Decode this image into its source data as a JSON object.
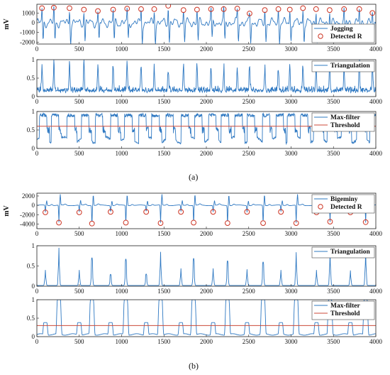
{
  "captions": {
    "a": "(a)",
    "b": "(b)"
  },
  "colors": {
    "signal": "#2e78c2",
    "detected": "#cc3322",
    "threshold": "#cc4a3a",
    "axis": "#222222"
  },
  "chart_data": [
    {
      "id": "a1",
      "type": "line",
      "ylabel": "mV",
      "xlim": [
        0,
        4000
      ],
      "ylim": [
        -2200,
        1900
      ],
      "xticks": [
        0,
        500,
        1000,
        1500,
        2000,
        2500,
        3000,
        3500,
        4000
      ],
      "yticks": [
        -2000,
        -1000,
        0,
        1000
      ],
      "series": [
        {
          "name": "Jogging",
          "kind": "ecg_jog"
        },
        {
          "name": "Detected R",
          "kind": "markers"
        }
      ],
      "detected_r": [
        [
          60,
          1500
        ],
        [
          200,
          1550
        ],
        [
          385,
          1500
        ],
        [
          555,
          1350
        ],
        [
          720,
          1200
        ],
        [
          900,
          1350
        ],
        [
          1065,
          1450
        ],
        [
          1230,
          1400
        ],
        [
          1385,
          1400
        ],
        [
          1550,
          1750
        ],
        [
          1730,
          1300
        ],
        [
          1890,
          1350
        ],
        [
          2055,
          1400
        ],
        [
          2205,
          1400
        ],
        [
          2365,
          1450
        ],
        [
          2510,
          950
        ],
        [
          2690,
          1300
        ],
        [
          2850,
          1400
        ],
        [
          2985,
          1350
        ],
        [
          3140,
          1500
        ],
        [
          3295,
          1400
        ],
        [
          3455,
          1300
        ],
        [
          3625,
          1400
        ],
        [
          3805,
          1400
        ],
        [
          3960,
          1000
        ]
      ],
      "legend": [
        "Jogging",
        "Detected R"
      ],
      "legend_loc": "lower right"
    },
    {
      "id": "a2",
      "type": "line",
      "xlim": [
        0,
        4000
      ],
      "ylim": [
        0,
        1
      ],
      "xticks": [
        0,
        500,
        1000,
        1500,
        2000,
        2500,
        3000,
        3500,
        4000
      ],
      "yticks": [
        0,
        0.5,
        1
      ],
      "series": [
        {
          "name": "Triangulation",
          "kind": "tri_jog"
        }
      ],
      "peaks": [
        60,
        200,
        385,
        555,
        720,
        900,
        1065,
        1230,
        1385,
        1550,
        1730,
        1890,
        2055,
        2205,
        2365,
        2510,
        2690,
        2850,
        2985,
        3140,
        3295,
        3455,
        3625,
        3805,
        3960
      ],
      "legend": [
        "Triangulation"
      ],
      "legend_loc": "upper right"
    },
    {
      "id": "a3",
      "type": "line",
      "xlim": [
        0,
        4000
      ],
      "ylim": [
        0,
        1
      ],
      "xticks": [
        0,
        500,
        1000,
        1500,
        2000,
        2500,
        3000,
        3500,
        4000
      ],
      "yticks": [
        0,
        0.5,
        1
      ],
      "threshold": 0.6,
      "series": [
        {
          "name": "Max-filter",
          "kind": "max_jog"
        },
        {
          "name": "Threshold",
          "kind": "hline"
        }
      ],
      "legend": [
        "Max-filter",
        "Threshold"
      ],
      "legend_loc": "upper right"
    },
    {
      "id": "b1",
      "type": "line",
      "ylabel": "mV",
      "xlim": [
        0,
        4000
      ],
      "ylim": [
        -5000,
        2600
      ],
      "xticks": [
        0,
        500,
        1000,
        1500,
        2000,
        2500,
        3000,
        3500,
        4000
      ],
      "yticks": [
        -4000,
        -2000,
        0,
        2000
      ],
      "series": [
        {
          "name": "Bigeminy",
          "kind": "ecg_big"
        },
        {
          "name": "Detected R",
          "kind": "markers"
        }
      ],
      "detected_r": [
        [
          100,
          -1500
        ],
        [
          260,
          -3700
        ],
        [
          500,
          -1500
        ],
        [
          650,
          -3900
        ],
        [
          870,
          -1400
        ],
        [
          1050,
          -3700
        ],
        [
          1290,
          -1400
        ],
        [
          1460,
          -3800
        ],
        [
          1700,
          -1400
        ],
        [
          1850,
          -3700
        ],
        [
          2080,
          -1400
        ],
        [
          2250,
          -3800
        ],
        [
          2480,
          -1400
        ],
        [
          2670,
          -3800
        ],
        [
          2880,
          -1400
        ],
        [
          3060,
          -3800
        ],
        [
          3300,
          -1500
        ],
        [
          3460,
          -3500
        ],
        [
          3700,
          -1500
        ],
        [
          3880,
          -3600
        ]
      ],
      "legend": [
        "Bigeminy",
        "Detected R"
      ],
      "legend_loc": "upper right"
    },
    {
      "id": "b2",
      "type": "line",
      "xlim": [
        0,
        4000
      ],
      "ylim": [
        0,
        1
      ],
      "xticks": [
        0,
        500,
        1000,
        1500,
        2000,
        2500,
        3000,
        3500,
        4000
      ],
      "yticks": [
        0,
        0.5,
        1
      ],
      "series": [
        {
          "name": "Triangulation",
          "kind": "tri_big"
        }
      ],
      "peaks": [
        [
          100,
          0.38
        ],
        [
          260,
          0.93
        ],
        [
          500,
          0.38
        ],
        [
          650,
          0.92
        ],
        [
          870,
          0.37
        ],
        [
          1050,
          0.88
        ],
        [
          1290,
          0.38
        ],
        [
          1460,
          0.83
        ],
        [
          1700,
          0.42
        ],
        [
          1850,
          0.9
        ],
        [
          2080,
          0.42
        ],
        [
          2250,
          0.82
        ],
        [
          2480,
          0.4
        ],
        [
          2670,
          0.78
        ],
        [
          2880,
          0.38
        ],
        [
          3060,
          0.82
        ],
        [
          3300,
          0.38
        ],
        [
          3460,
          0.85
        ],
        [
          3700,
          0.37
        ],
        [
          3880,
          0.88
        ]
      ],
      "legend": [
        "Triangulation"
      ],
      "legend_loc": "upper right"
    },
    {
      "id": "b3",
      "type": "line",
      "xlim": [
        0,
        4000
      ],
      "ylim": [
        0,
        1
      ],
      "xticks": [
        0,
        500,
        1000,
        1500,
        2000,
        2500,
        3000,
        3500,
        4000
      ],
      "yticks": [
        0,
        0.5,
        1
      ],
      "threshold": 0.3,
      "series": [
        {
          "name": "Max-filter",
          "kind": "max_big"
        },
        {
          "name": "Threshold",
          "kind": "hline"
        }
      ],
      "legend": [
        "Max-filter",
        "Threshold"
      ],
      "legend_loc": "upper right"
    }
  ]
}
